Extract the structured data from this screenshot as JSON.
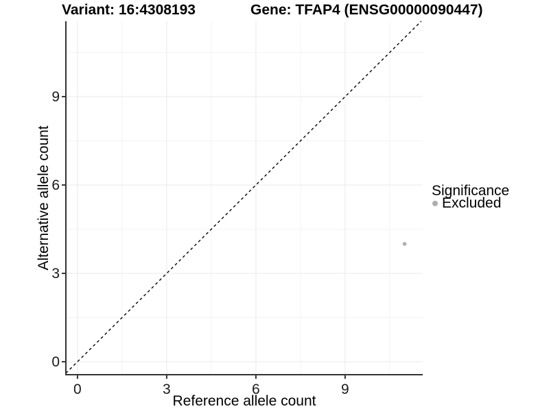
{
  "chart_data": {
    "type": "scatter",
    "title_left": "Variant: 16:4308193",
    "title_right": "Gene: TFAP4 (ENSG00000090447)",
    "xlabel": "Reference allele count",
    "ylabel": "Alternative allele count",
    "x_ticks": [
      0,
      3,
      6,
      9
    ],
    "y_ticks": [
      0,
      3,
      6,
      9
    ],
    "xlim": [
      -0.39,
      11.61
    ],
    "ylim": [
      -0.44,
      11.56
    ],
    "grid": "major+minor",
    "legend_position": "right",
    "identity_line": {
      "style": "dashed",
      "color": "#000000"
    },
    "series": [
      {
        "name": "Excluded",
        "color": "#aeaeae",
        "points": [
          [
            11,
            4
          ]
        ]
      }
    ],
    "legend": {
      "title": "Significance",
      "items": [
        {
          "label": "Excluded",
          "color": "#aeaeae"
        }
      ]
    }
  },
  "colors": {
    "grid_major": "#e9e9e9",
    "grid_minor": "#f3f3f3",
    "axis_line": "#333333",
    "tick_text": "#1a1a1a"
  }
}
